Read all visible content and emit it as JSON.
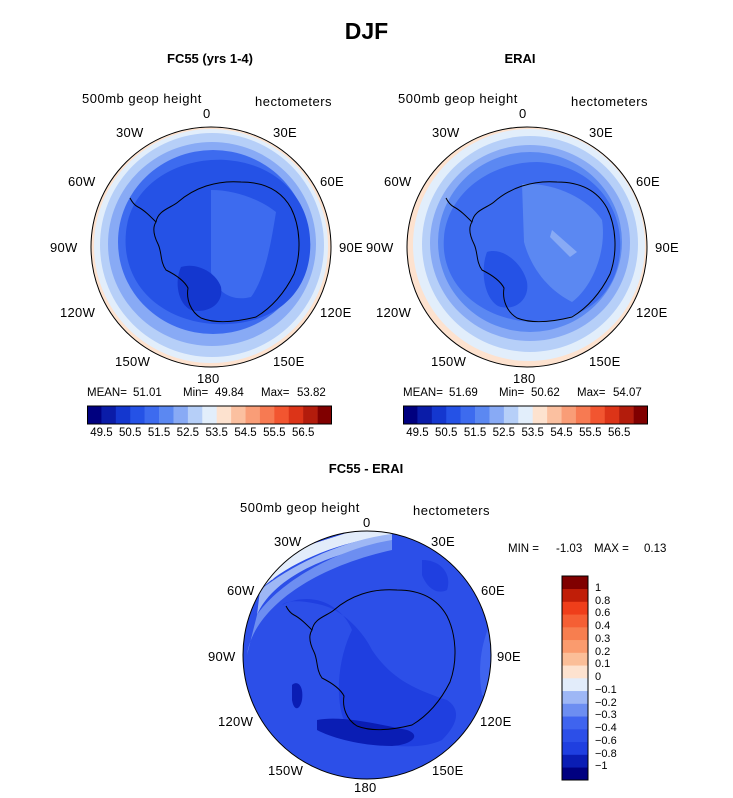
{
  "title": "DJF",
  "panels": [
    {
      "title": "FC55 (yrs 1-4)",
      "field_label": "500mb geop height",
      "units_label": "hectometers",
      "mean_label": "MEAN=",
      "mean": "51.01",
      "min_label": "Min=",
      "min": "49.84",
      "max_label": "Max=",
      "max": "53.82",
      "lon_labels": [
        "0",
        "30E",
        "60E",
        "90E",
        "120E",
        "150E",
        "180",
        "150W",
        "120W",
        "90W",
        "60W",
        "30W"
      ]
    },
    {
      "title": "ERAI",
      "field_label": "500mb geop height",
      "units_label": "hectometers",
      "mean_label": "MEAN=",
      "mean": "51.69",
      "min_label": "Min=",
      "min": "50.62",
      "max_label": "Max=",
      "max": "54.07",
      "lon_labels": [
        "0",
        "30E",
        "60E",
        "90E",
        "120E",
        "150E",
        "180",
        "150W",
        "120W",
        "90W",
        "60W",
        "30W"
      ]
    },
    {
      "title": "FC55 - ERAI",
      "field_label": "500mb geop height",
      "units_label": "hectometers",
      "min_label": "MIN =",
      "min": "-1.03",
      "max_label": "MAX =",
      "max": "0.13",
      "lon_labels": [
        "0",
        "30E",
        "60E",
        "90E",
        "120E",
        "150E",
        "180",
        "150W",
        "120W",
        "90W",
        "60W",
        "30W"
      ]
    }
  ],
  "colorbar_top": {
    "colors": [
      "#00007f",
      "#0a1ca8",
      "#1437cf",
      "#2552e6",
      "#3d6bef",
      "#5b88f2",
      "#88aaf5",
      "#b6cff8",
      "#e2eefb",
      "#fde2cf",
      "#fbc0a0",
      "#f99d77",
      "#f77a52",
      "#f25530",
      "#dc3418",
      "#b31c0c",
      "#800000"
    ],
    "labels": [
      "49.5",
      "50.5",
      "51.5",
      "52.5",
      "53.5",
      "54.5",
      "55.5",
      "56.5"
    ]
  },
  "colorbar_diff": {
    "colors": [
      "#000080",
      "#0a1db4",
      "#1f3fe0",
      "#2c4fe8",
      "#3f64ef",
      "#6d8ef1",
      "#9eb7f5",
      "#e2ecfa",
      "#fde2cf",
      "#fbbe98",
      "#fa9b6e",
      "#f77e4f",
      "#f55f34",
      "#ef3e1a",
      "#c01e08",
      "#800000"
    ],
    "labels": [
      "1",
      "0.8",
      "0.6",
      "0.4",
      "0.3",
      "0.2",
      "0.1",
      "0",
      "−0.1",
      "−0.2",
      "−0.3",
      "−0.4",
      "−0.6",
      "−0.8",
      "−1"
    ]
  },
  "chart_data": [
    {
      "type": "heatmap",
      "title": "FC55 (yrs 1-4)",
      "variable": "500mb geop height",
      "units": "hectometers",
      "projection": "south polar stereographic",
      "mean": 51.01,
      "min": 49.84,
      "max": 53.82,
      "contour_levels": [
        49.5,
        50.5,
        51.5,
        52.5,
        53.5,
        54.5,
        55.5,
        56.5
      ]
    },
    {
      "type": "heatmap",
      "title": "ERAI",
      "variable": "500mb geop height",
      "units": "hectometers",
      "projection": "south polar stereographic",
      "mean": 51.69,
      "min": 50.62,
      "max": 54.07,
      "contour_levels": [
        49.5,
        50.5,
        51.5,
        52.5,
        53.5,
        54.5,
        55.5,
        56.5
      ]
    },
    {
      "type": "heatmap",
      "title": "FC55 - ERAI",
      "variable": "500mb geop height",
      "units": "hectometers",
      "projection": "south polar stereographic",
      "min": -1.03,
      "max": 0.13,
      "contour_levels": [
        -1,
        -0.8,
        -0.6,
        -0.4,
        -0.3,
        -0.2,
        -0.1,
        0,
        0.1,
        0.2,
        0.3,
        0.4,
        0.6,
        0.8,
        1
      ]
    }
  ]
}
